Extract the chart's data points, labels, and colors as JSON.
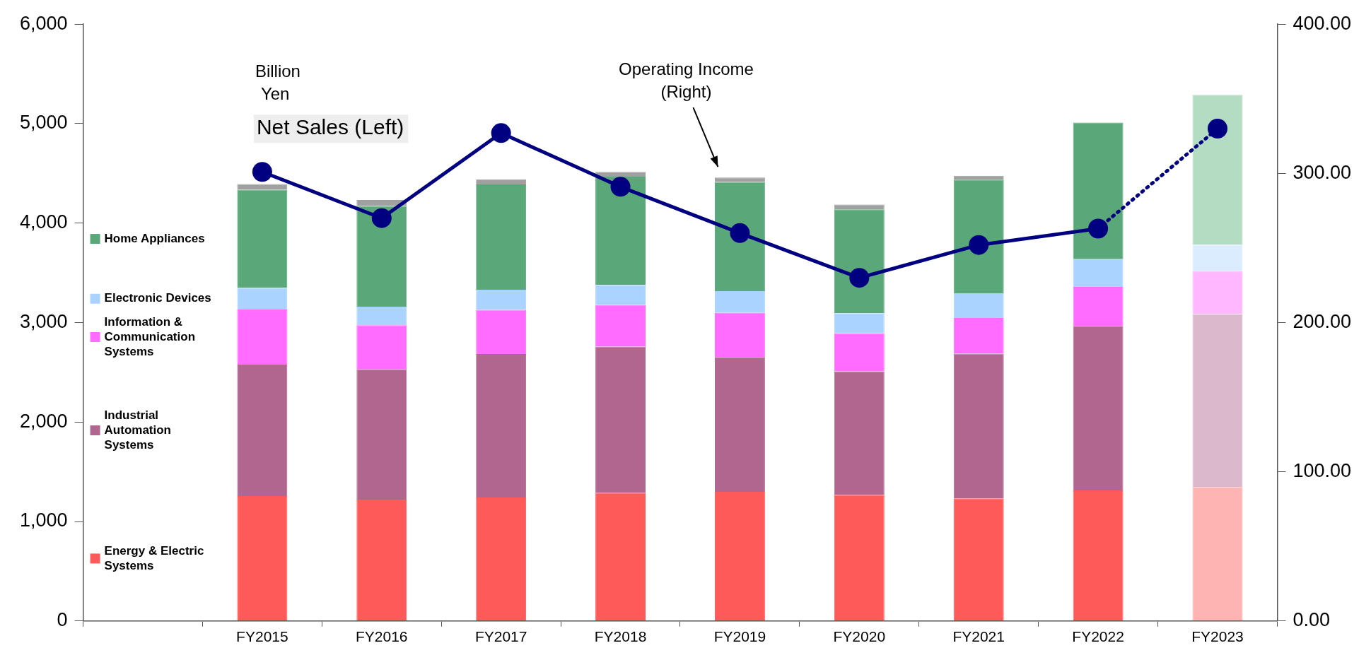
{
  "chart_data": {
    "type": "bar",
    "stacked": true,
    "categories": [
      null,
      "FY2015",
      "FY2016",
      "FY2017",
      "FY2018",
      "FY2019",
      "FY2020",
      "FY2021",
      "FY2022",
      "FY2023"
    ],
    "ylabel": "Billion Yen",
    "annotations": [
      "Net Sales (Left)",
      "Operating Income (Right)"
    ],
    "series": [
      {
        "name": "Energy & Electric Systems",
        "color": "#ff5a5a",
        "colors": [
          "#ff5a5a",
          "#ff5a5a",
          "#ff5a5a",
          "#ff5a5a",
          "#ff5a5a",
          "#ff5a5a",
          "#ff5a5a",
          "#ff5a5a",
          "#ff5a5a",
          "#ffb4b4"
        ],
        "values": [
          null,
          1256,
          1220,
          1242,
          1286,
          1298,
          1268,
          1233,
          1312,
          1346
        ]
      },
      {
        "name": "Industrial Automation Systems",
        "color": "#b0668e",
        "colors": [
          "#b0668e",
          "#b0668e",
          "#b0668e",
          "#b0668e",
          "#b0668e",
          "#b0668e",
          "#b0668e",
          "#b0668e",
          "#b0668e",
          "#dcb8cc"
        ],
        "values": [
          null,
          1321,
          1309,
          1441,
          1472,
          1356,
          1242,
          1455,
          1655,
          1739
        ]
      },
      {
        "name": "Information & Communication Systems",
        "color": "#ff6cff",
        "colors": [
          "#ff6cff",
          "#ff6cff",
          "#ff6cff",
          "#ff6cff",
          "#ff6cff",
          "#ff6cff",
          "#ff6cff",
          "#ff6cff",
          "#ff6cff",
          "#ffb8ff"
        ],
        "values": [
          null,
          555,
          445,
          445,
          418,
          444,
          383,
          358,
          392,
          431
        ]
      },
      {
        "name": "Electronic Devices",
        "color": "#aad4ff",
        "colors": [
          "#aad4ff",
          "#aad4ff",
          "#aad4ff",
          "#aad4ff",
          "#aad4ff",
          "#aad4ff",
          "#aad4ff",
          "#aad4ff",
          "#aad4ff",
          "#dcecff"
        ],
        "values": [
          null,
          216,
          185,
          202,
          203,
          218,
          201,
          248,
          279,
          266
        ]
      },
      {
        "name": "Home Appliances",
        "color": "#5aa77a",
        "colors": [
          "#5aa77a",
          "#5aa77a",
          "#5aa77a",
          "#5aa77a",
          "#5aa77a",
          "#5aa77a",
          "#5aa77a",
          "#5aa77a",
          "#5aa77a",
          "#b4dcc2"
        ],
        "values": [
          null,
          987,
          1013,
          1058,
          1088,
          1098,
          1045,
          1142,
          1373,
          1508
        ]
      },
      {
        "color": "#a0a0a0",
        "values": [
          null,
          57,
          61,
          53,
          48,
          44,
          48,
          39,
          null,
          null
        ]
      },
      {
        "type": "line",
        "axis": "y2",
        "color": "#000080",
        "marker": "circle",
        "line_style": "solid",
        "values": [
          null,
          301,
          270,
          327,
          291,
          260,
          230,
          252,
          263,
          null
        ]
      },
      {
        "type": "line",
        "axis": "y2",
        "color": "#000080",
        "marker": "circle",
        "line_style": "dotted",
        "values": [
          null,
          null,
          null,
          null,
          null,
          null,
          null,
          null,
          263,
          330
        ]
      }
    ],
    "ylim": [
      0,
      6000
    ],
    "yticks": [
      {
        "value": 0,
        "label": "0"
      },
      {
        "value": 1000,
        "label": "1,000"
      },
      {
        "value": 2000,
        "label": "2,000"
      },
      {
        "value": 3000,
        "label": "3,000"
      },
      {
        "value": 4000,
        "label": "4,000"
      },
      {
        "value": 5000,
        "label": "5,000"
      },
      {
        "value": 6000,
        "label": "6,000"
      }
    ],
    "y2lim": [
      0,
      400
    ],
    "y2ticks": [
      {
        "value": 0,
        "label": "0.00"
      },
      {
        "value": 100,
        "label": "100.00"
      },
      {
        "value": 200,
        "label": "200.00"
      },
      {
        "value": 300,
        "label": "300.00"
      },
      {
        "value": 400,
        "label": "400.00"
      }
    ],
    "grid": false,
    "legend": "left"
  }
}
